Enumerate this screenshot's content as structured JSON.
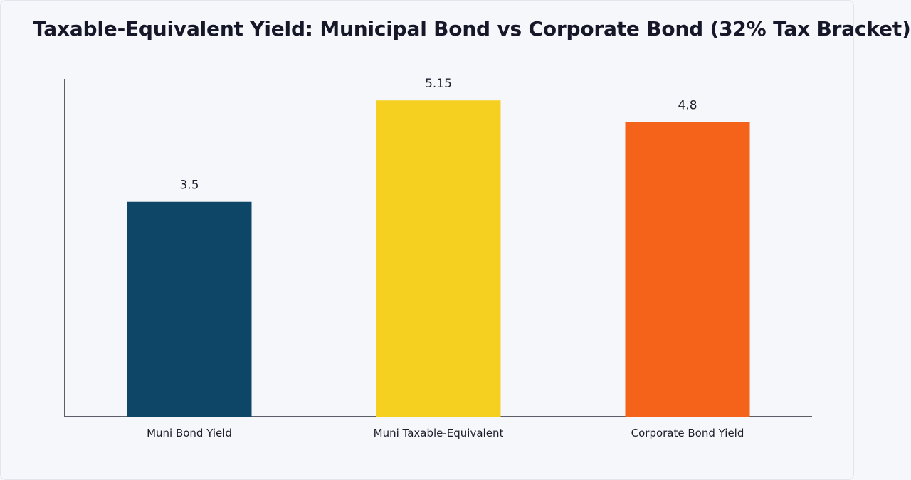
{
  "chart_data": {
    "type": "bar",
    "title": "Taxable-Equivalent Yield: Municipal Bond vs Corporate Bond (32% Tax Bracket)",
    "xlabel": "",
    "ylabel": "",
    "categories": [
      "Muni Bond Yield",
      "Muni Taxable-Equivalent",
      "Corporate Bond Yield"
    ],
    "values": [
      3.5,
      5.15,
      4.8
    ],
    "ylim": [
      0,
      5.5
    ],
    "grid": false,
    "colors": [
      "#0e4668",
      "#f5d020",
      "#f5621a"
    ]
  }
}
